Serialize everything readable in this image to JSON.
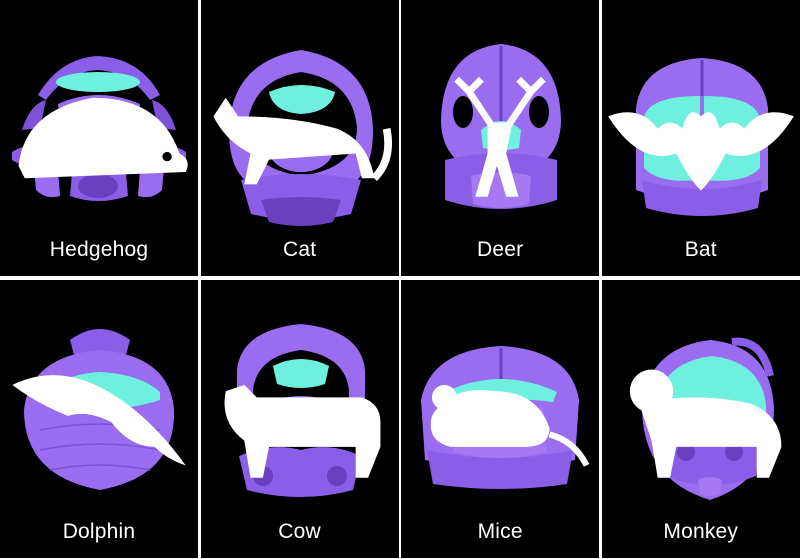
{
  "colors": {
    "skull": "#9a6cf0",
    "skull_shadow": "#6a3fc0",
    "brain": "#6ff0de",
    "background": "#000000",
    "divider": "#ffffff",
    "label": "#ffffff"
  },
  "panels": [
    {
      "label": "Hedgehog",
      "icon": "hedgehog-icon"
    },
    {
      "label": "Cat",
      "icon": "cat-icon"
    },
    {
      "label": "Deer",
      "icon": "deer-icon"
    },
    {
      "label": "Bat",
      "icon": "bat-icon"
    },
    {
      "label": "Dolphin",
      "icon": "dolphin-icon"
    },
    {
      "label": "Cow",
      "icon": "cow-icon"
    },
    {
      "label": "Mice",
      "icon": "mouse-icon"
    },
    {
      "label": "Monkey",
      "icon": "monkey-icon"
    }
  ]
}
